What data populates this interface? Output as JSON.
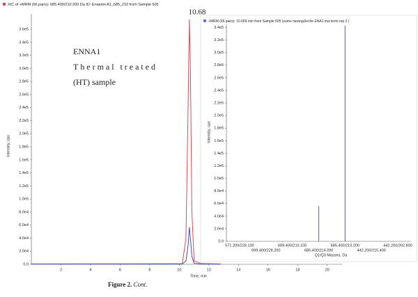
{
  "chart_data": [
    {
      "type": "line",
      "title": "XIC of +MRM (66 pairs): 685.400/210.200 Da ID: Eniantin A1_685_210 from Sample 505",
      "x_label": "Time, min",
      "y_label": "Intensity, cps",
      "annotations": [
        "10.68",
        "ENNA1",
        "Thermal treated",
        "(HT) sample"
      ],
      "x": [
        0,
        10.2,
        10.45,
        10.6,
        10.68,
        10.75,
        10.85,
        11.0,
        11.5,
        12.8
      ],
      "series": [
        {
          "name": "XIC of +MRM (66 pairs): 685.400/210.200 Da ID: Eniantin A1_685_210 from Sample 505",
          "color": "#e0474c",
          "values": [
            500,
            800,
            40000,
            250000,
            375000,
            300000,
            80000,
            5000,
            1000,
            500
          ]
        },
        {
          "color": "#3f48cc",
          "values": [
            500,
            500,
            5000,
            30000,
            57000,
            40000,
            12000,
            1500,
            500,
            500
          ]
        }
      ],
      "xlim": [
        0,
        21
      ],
      "xticks": [
        2,
        4,
        6,
        8,
        10,
        12,
        14,
        16,
        18,
        20
      ],
      "ylim": [
        0,
        375000
      ],
      "yticks": [
        {
          "value": 0,
          "label": "0.0"
        },
        {
          "value": 20000,
          "label": "2.0e4"
        },
        {
          "value": 40000,
          "label": "4.0e4"
        },
        {
          "value": 60000,
          "label": "6.0e4"
        },
        {
          "value": 80000,
          "label": "8.0e4"
        },
        {
          "value": 100000,
          "label": "1.0e5"
        },
        {
          "value": 120000,
          "label": "1.2e5"
        },
        {
          "value": 140000,
          "label": "1.4e5"
        },
        {
          "value": 160000,
          "label": "1.6e5"
        },
        {
          "value": 180000,
          "label": "1.8e5"
        },
        {
          "value": 200000,
          "label": "2.0e5"
        },
        {
          "value": 220000,
          "label": "2.2e5"
        },
        {
          "value": 240000,
          "label": "2.4e5"
        },
        {
          "value": 260000,
          "label": "2.6e5"
        },
        {
          "value": 280000,
          "label": "2.8e5"
        },
        {
          "value": 300000,
          "label": "3.0e5"
        },
        {
          "value": 320000,
          "label": "3.2e5"
        },
        {
          "value": 340000,
          "label": "3.4e5"
        },
        {
          "value": 360000,
          "label": "3.6e5"
        }
      ]
    },
    {
      "type": "bar",
      "title": "+MRM (66 pairs): 10.669 min from Sample 505 (zumo naranja/leche ENA1 trat termi rep 2 )",
      "x_label": "Q1/Q3 Masses, Da",
      "y_label": "Intensity, cps",
      "color": "#6b6fd6",
      "categories": [
        "571.200/228.100",
        "699.400/228.200",
        "699.400/210.100",
        "685.400/214.200",
        "685.400/210.200",
        "442.200/215.400",
        "442.200/262.800"
      ],
      "values": [
        null,
        null,
        null,
        56000,
        343000,
        null,
        null
      ],
      "ylim": [
        0,
        345000
      ],
      "yticks": [
        {
          "value": 0,
          "label": "0.0"
        },
        {
          "value": 20000,
          "label": "2.0e4"
        },
        {
          "value": 40000,
          "label": "4.0e4"
        },
        {
          "value": 60000,
          "label": "6.0e4"
        },
        {
          "value": 80000,
          "label": "8.0e4"
        },
        {
          "value": 100000,
          "label": "1.0e5"
        },
        {
          "value": 120000,
          "label": "1.2e5"
        },
        {
          "value": 140000,
          "label": "1.4e5"
        },
        {
          "value": 160000,
          "label": "1.6e5"
        },
        {
          "value": 180000,
          "label": "1.8e5"
        },
        {
          "value": 200000,
          "label": "2.0e5"
        },
        {
          "value": 220000,
          "label": "2.2e5"
        },
        {
          "value": 240000,
          "label": "2.4e5"
        },
        {
          "value": 260000,
          "label": "2.6e5"
        },
        {
          "value": 280000,
          "label": "2.8e5"
        },
        {
          "value": 300000,
          "label": "3.0e5"
        },
        {
          "value": 320000,
          "label": "3.2e5"
        },
        {
          "value": 340000,
          "label": "3.4e5"
        }
      ]
    }
  ],
  "caption": {
    "label": "Figure 2.",
    "text": "Cont."
  }
}
